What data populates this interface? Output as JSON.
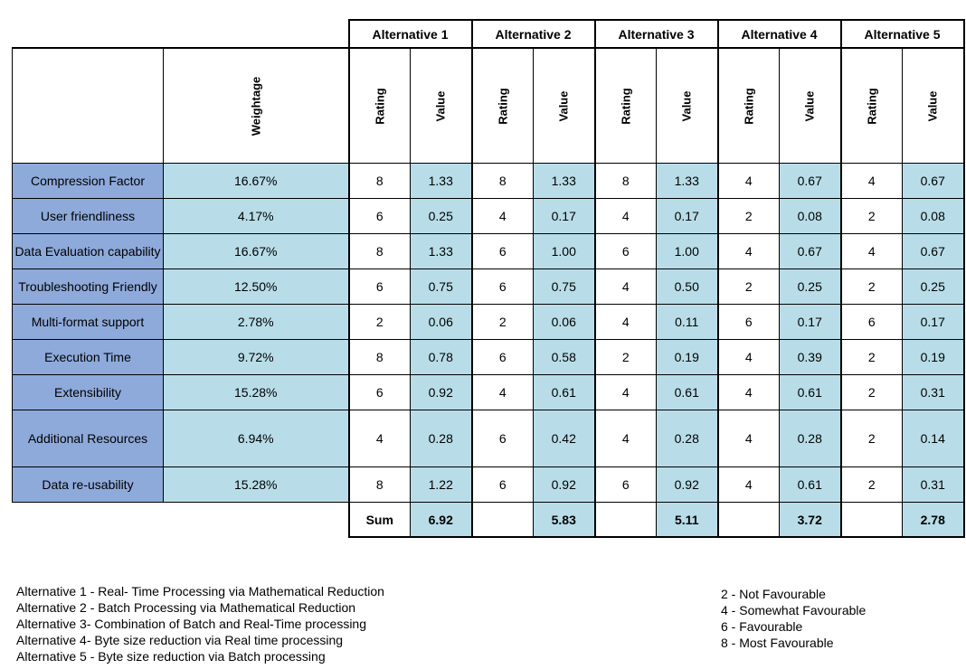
{
  "alternatives": [
    "Alternative 1",
    "Alternative 2",
    "Alternative 3",
    "Alternative 4",
    "Alternative 5"
  ],
  "sub_headers": {
    "weightage": "Weightage",
    "rating": "Rating",
    "value": "Value"
  },
  "rows": [
    {
      "criterion": "Compression Factor",
      "weight": "16.67%",
      "cells": [
        [
          "8",
          "1.33"
        ],
        [
          "8",
          "1.33"
        ],
        [
          "8",
          "1.33"
        ],
        [
          "4",
          "0.67"
        ],
        [
          "4",
          "0.67"
        ]
      ]
    },
    {
      "criterion": "User friendliness",
      "weight": "4.17%",
      "cells": [
        [
          "6",
          "0.25"
        ],
        [
          "4",
          "0.17"
        ],
        [
          "4",
          "0.17"
        ],
        [
          "2",
          "0.08"
        ],
        [
          "2",
          "0.08"
        ]
      ]
    },
    {
      "criterion": "Data Evaluation capability",
      "weight": "16.67%",
      "cells": [
        [
          "8",
          "1.33"
        ],
        [
          "6",
          "1.00"
        ],
        [
          "6",
          "1.00"
        ],
        [
          "4",
          "0.67"
        ],
        [
          "4",
          "0.67"
        ]
      ]
    },
    {
      "criterion": "Troubleshooting Friendly",
      "weight": "12.50%",
      "cells": [
        [
          "6",
          "0.75"
        ],
        [
          "6",
          "0.75"
        ],
        [
          "4",
          "0.50"
        ],
        [
          "2",
          "0.25"
        ],
        [
          "2",
          "0.25"
        ]
      ]
    },
    {
      "criterion": "Multi-format support",
      "weight": "2.78%",
      "cells": [
        [
          "2",
          "0.06"
        ],
        [
          "2",
          "0.06"
        ],
        [
          "4",
          "0.11"
        ],
        [
          "6",
          "0.17"
        ],
        [
          "6",
          "0.17"
        ]
      ]
    },
    {
      "criterion": "Execution Time",
      "weight": "9.72%",
      "cells": [
        [
          "8",
          "0.78"
        ],
        [
          "6",
          "0.58"
        ],
        [
          "2",
          "0.19"
        ],
        [
          "4",
          "0.39"
        ],
        [
          "2",
          "0.19"
        ]
      ]
    },
    {
      "criterion": "Extensibility",
      "weight": "15.28%",
      "cells": [
        [
          "6",
          "0.92"
        ],
        [
          "4",
          "0.61"
        ],
        [
          "4",
          "0.61"
        ],
        [
          "4",
          "0.61"
        ],
        [
          "2",
          "0.31"
        ]
      ]
    },
    {
      "criterion": "Additional Resources",
      "weight": "6.94%",
      "cells": [
        [
          "4",
          "0.28"
        ],
        [
          "6",
          "0.42"
        ],
        [
          "4",
          "0.28"
        ],
        [
          "4",
          "0.28"
        ],
        [
          "2",
          "0.14"
        ]
      ]
    },
    {
      "criterion": "Data re-usability",
      "weight": "15.28%",
      "cells": [
        [
          "8",
          "1.22"
        ],
        [
          "6",
          "0.92"
        ],
        [
          "6",
          "0.92"
        ],
        [
          "4",
          "0.61"
        ],
        [
          "2",
          "0.31"
        ]
      ]
    }
  ],
  "sum": {
    "label": "Sum",
    "values": [
      "6.92",
      "5.83",
      "5.11",
      "3.72",
      "2.78"
    ]
  },
  "legend_alternatives": [
    "Alternative 1 - Real- Time Processing via Mathematical Reduction",
    "Alternative 2 - Batch Processing via Mathematical Reduction",
    "Alternative 3- Combination of Batch and Real-Time processing",
    "Alternative 4- Byte size reduction  via Real time processing",
    "Alternative 5 - Byte size reduction via Batch processing"
  ],
  "legend_ratings": [
    "2 - Not Favourable",
    "4 - Somewhat Favourable",
    "6 - Favourable",
    "8 - Most Favourable"
  ],
  "colors": {
    "criterion_bg": "#8eaadb",
    "value_bg": "#b8dde8"
  }
}
